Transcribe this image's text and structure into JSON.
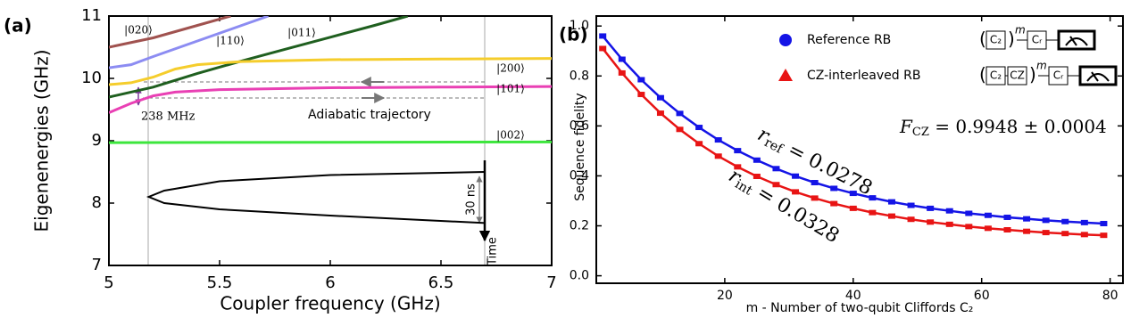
{
  "chart_data": [
    {
      "type": "line",
      "panel_label": "(a)",
      "xlabel": "Coupler frequency (GHz)",
      "ylabel": "Eigenenergies (GHz)",
      "xlim": [
        5,
        7
      ],
      "ylim": [
        7,
        11
      ],
      "xticks": [
        5,
        5.5,
        6,
        6.5,
        7
      ],
      "yticks": [
        7,
        8,
        9,
        10,
        11
      ],
      "series": [
        {
          "name": "|020⟩",
          "color": "#a0524f",
          "x": [
            5,
            5.2,
            5.4,
            5.55
          ],
          "values": [
            10.5,
            10.65,
            10.85,
            11.0
          ]
        },
        {
          "name": "|110⟩",
          "color": "#8c8cf2",
          "x": [
            5,
            5.1,
            5.2,
            5.4,
            5.6,
            5.72
          ],
          "values": [
            10.17,
            10.22,
            10.35,
            10.6,
            10.85,
            11.0
          ]
        },
        {
          "name": "|011⟩",
          "color": "#1f5f1f",
          "x": [
            5,
            5.2,
            5.4,
            5.6,
            5.8,
            6.0,
            6.2,
            6.35
          ],
          "values": [
            9.7,
            9.86,
            10.08,
            10.28,
            10.47,
            10.66,
            10.85,
            11.0
          ]
        },
        {
          "name": "|200⟩",
          "color": "#f5cd2c",
          "x": [
            5,
            5.1,
            5.2,
            5.3,
            5.4,
            5.6,
            6.0,
            6.5,
            7
          ],
          "values": [
            9.9,
            9.93,
            10.02,
            10.15,
            10.22,
            10.27,
            10.3,
            10.31,
            10.32
          ]
        },
        {
          "name": "|101⟩",
          "color": "#e940b4",
          "x": [
            5,
            5.1,
            5.2,
            5.3,
            5.5,
            6.0,
            6.5,
            7
          ],
          "values": [
            9.45,
            9.6,
            9.72,
            9.78,
            9.82,
            9.85,
            9.86,
            9.87
          ]
        },
        {
          "name": "|002⟩",
          "color": "#3de63d",
          "x": [
            5,
            7
          ],
          "values": [
            8.97,
            8.98
          ]
        },
        {
          "color": "#000000",
          "x": [
            6.7,
            6.0,
            5.5,
            5.25,
            5.18,
            5.25,
            5.5,
            6.0,
            6.7
          ],
          "values": [
            8.5,
            8.45,
            8.35,
            8.2,
            8.1,
            8.0,
            7.9,
            7.8,
            7.68
          ]
        }
      ],
      "annotations": [
        "238 MHz",
        "Adiabatic trajectory",
        "30 ns",
        "Time"
      ]
    },
    {
      "type": "line",
      "panel_label": "(b)",
      "xlabel": "m - Number of two-qubit Cliffords C₂",
      "ylabel": "Sequence fidelity",
      "xlim": [
        0,
        82
      ],
      "ylim": [
        -0.03,
        1.04
      ],
      "xticks": [
        20,
        40,
        60,
        80
      ],
      "yticks": [
        {
          "value": 0,
          "label": "0.0"
        },
        0.2,
        0.4,
        0.6,
        0.8,
        {
          "value": 1,
          "label": "1.0"
        }
      ],
      "series": [
        {
          "name": "Reference RB",
          "color": "#1414e6",
          "marker": "circle",
          "x": [
            1,
            4,
            7,
            10,
            13,
            16,
            19,
            22,
            25,
            28,
            31,
            34,
            37,
            40,
            43,
            46,
            49,
            52,
            55,
            58,
            61,
            64,
            67,
            70,
            73,
            76,
            79
          ],
          "values": [
            0.96,
            0.867,
            0.785,
            0.713,
            0.65,
            0.594,
            0.544,
            0.501,
            0.463,
            0.429,
            0.399,
            0.373,
            0.35,
            0.33,
            0.312,
            0.296,
            0.282,
            0.27,
            0.26,
            0.25,
            0.242,
            0.234,
            0.228,
            0.222,
            0.217,
            0.213,
            0.209
          ]
        },
        {
          "name": "CZ-interleaved RB",
          "color": "#e81414",
          "marker": "triangle",
          "x": [
            1,
            4,
            7,
            10,
            13,
            16,
            19,
            22,
            25,
            28,
            31,
            34,
            37,
            40,
            43,
            46,
            49,
            52,
            55,
            58,
            61,
            64,
            67,
            70,
            73,
            76,
            79
          ],
          "values": [
            0.91,
            0.812,
            0.726,
            0.651,
            0.586,
            0.529,
            0.479,
            0.436,
            0.398,
            0.365,
            0.336,
            0.311,
            0.289,
            0.27,
            0.253,
            0.239,
            0.226,
            0.215,
            0.206,
            0.197,
            0.19,
            0.184,
            0.178,
            0.173,
            0.169,
            0.165,
            0.162
          ]
        }
      ],
      "circuits": [
        {
          "gates": [
            "C₂"
          ],
          "power": "m",
          "final": "Cᵣ"
        },
        {
          "gates": [
            "C₂",
            "CZ"
          ],
          "power": "m",
          "final": "Cᵣ"
        }
      ],
      "annotations": [
        {
          "symbol": "r",
          "subscript": "ref",
          "text": " = 0.0278"
        },
        {
          "symbol": "r",
          "subscript": "int",
          "text": " = 0.0328"
        },
        {
          "symbol": "F",
          "subscript": "CZ",
          "text": " = 0.9948 ± 0.0004"
        }
      ]
    }
  ]
}
